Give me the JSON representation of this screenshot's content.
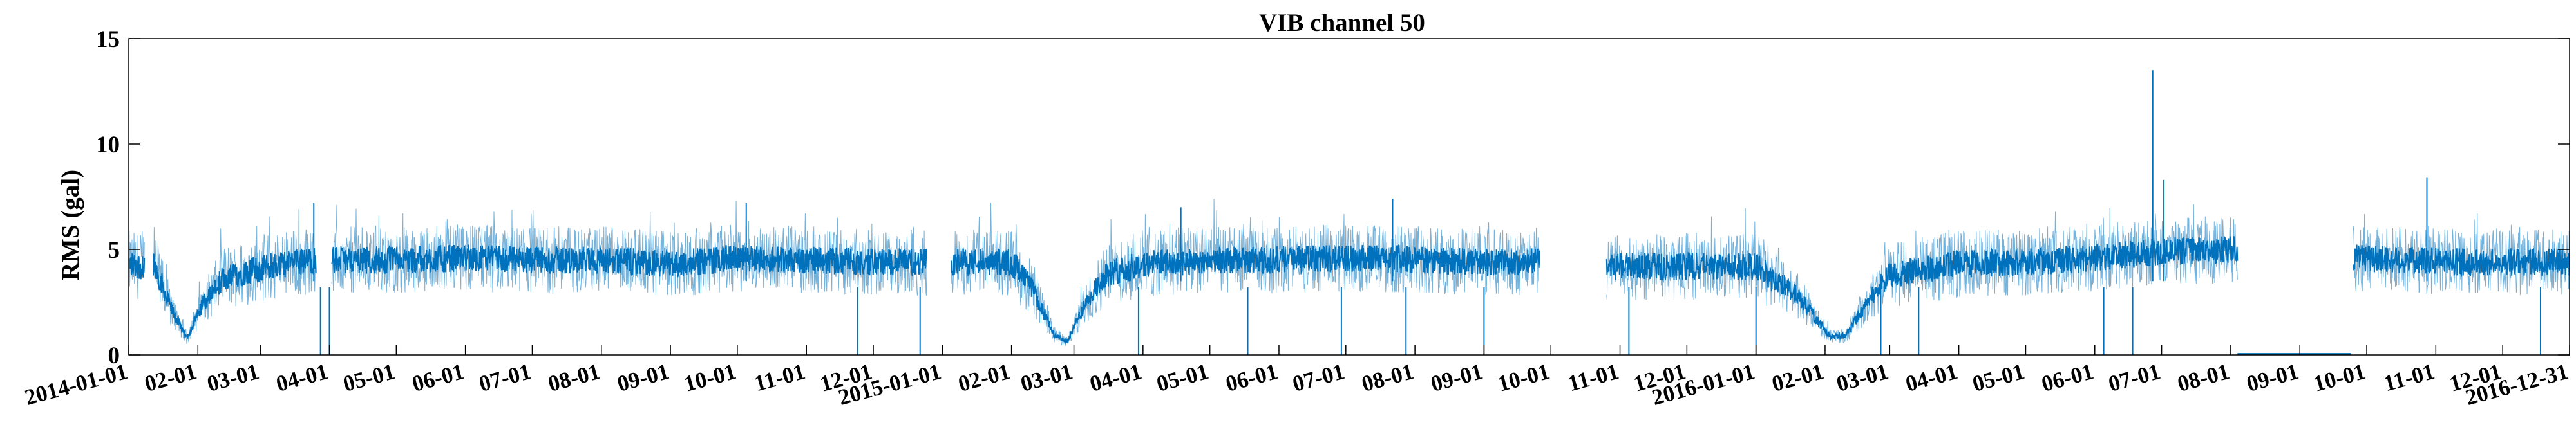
{
  "chart_data": {
    "type": "line",
    "title": "VIB channel 50",
    "xlabel": "",
    "ylabel": "RMS (gal)",
    "ylim": [
      0,
      15
    ],
    "yticks": [
      0,
      5,
      10,
      15
    ],
    "xlim": [
      "2014-01-01",
      "2016-12-31"
    ],
    "grid": false,
    "legend": "none",
    "colors": {
      "series": "#0072bd",
      "axes": "#000000"
    },
    "xtick_labels": [
      "2014-01-01",
      "02-01",
      "03-01",
      "04-01",
      "05-01",
      "06-01",
      "07-01",
      "08-01",
      "09-01",
      "10-01",
      "11-01",
      "12-01",
      "2015-01-01",
      "02-01",
      "03-01",
      "04-01",
      "05-01",
      "06-01",
      "07-01",
      "08-01",
      "09-01",
      "10-01",
      "11-01",
      "12-01",
      "2016-01-01",
      "02-01",
      "03-01",
      "04-01",
      "05-01",
      "06-01",
      "07-01",
      "08-01",
      "09-01",
      "10-01",
      "11-01",
      "12-01",
      "2016-12-31"
    ],
    "xtick_dates": [
      "2014-01-01",
      "2014-02-01",
      "2014-03-01",
      "2014-04-01",
      "2014-05-01",
      "2014-06-01",
      "2014-07-01",
      "2014-08-01",
      "2014-09-01",
      "2014-10-01",
      "2014-11-01",
      "2014-12-01",
      "2015-01-01",
      "2015-02-01",
      "2015-03-01",
      "2015-04-01",
      "2015-05-01",
      "2015-06-01",
      "2015-07-01",
      "2015-08-01",
      "2015-09-01",
      "2015-10-01",
      "2015-11-01",
      "2015-12-01",
      "2016-01-01",
      "2016-02-01",
      "2016-03-01",
      "2016-04-01",
      "2016-05-01",
      "2016-06-01",
      "2016-07-01",
      "2016-08-01",
      "2016-09-01",
      "2016-10-01",
      "2016-11-01",
      "2016-12-01",
      "2016-12-31"
    ],
    "series": [
      {
        "values_note": "",
        "segments": [
          {
            "start": "2014-01-01",
            "end": "2014-01-08",
            "points": [
              [
                "2014-01-01",
                4.3
              ],
              [
                "2014-01-08",
                4.2
              ]
            ]
          },
          {
            "start": "2014-01-12",
            "end": "2014-03-26",
            "points": [
              [
                "2014-01-12",
                4.4
              ],
              [
                "2014-01-20",
                2.2
              ],
              [
                "2014-01-27",
                0.8
              ],
              [
                "2014-02-03",
                2.4
              ],
              [
                "2014-02-12",
                3.6
              ],
              [
                "2014-02-25",
                4.0
              ],
              [
                "2014-03-10",
                4.3
              ],
              [
                "2014-03-26",
                4.5
              ]
            ]
          },
          {
            "start": "2014-04-02",
            "end": "2014-12-25",
            "points": [
              [
                "2014-04-02",
                4.5
              ],
              [
                "2014-05-01",
                4.5
              ],
              [
                "2014-06-01",
                4.6
              ],
              [
                "2014-07-01",
                4.5
              ],
              [
                "2014-08-01",
                4.5
              ],
              [
                "2014-09-01",
                4.3
              ],
              [
                "2014-10-01",
                4.6
              ],
              [
                "2014-11-01",
                4.5
              ],
              [
                "2014-12-01",
                4.4
              ],
              [
                "2014-12-25",
                4.4
              ]
            ]
          },
          {
            "start": "2015-01-05",
            "end": "2015-09-26",
            "points": [
              [
                "2015-01-05",
                4.4
              ],
              [
                "2015-02-01",
                4.4
              ],
              [
                "2015-02-10",
                3.2
              ],
              [
                "2015-02-20",
                1.0
              ],
              [
                "2015-02-26",
                0.6
              ],
              [
                "2015-03-05",
                2.2
              ],
              [
                "2015-03-15",
                3.8
              ],
              [
                "2015-04-01",
                4.3
              ],
              [
                "2015-05-01",
                4.5
              ],
              [
                "2015-06-01",
                4.5
              ],
              [
                "2015-07-01",
                4.6
              ],
              [
                "2015-08-01",
                4.5
              ],
              [
                "2015-09-01",
                4.4
              ],
              [
                "2015-09-26",
                4.4
              ]
            ]
          },
          {
            "start": "2015-10-26",
            "end": "2016-08-04",
            "points": [
              [
                "2015-10-26",
                4.2
              ],
              [
                "2015-12-01",
                4.2
              ],
              [
                "2016-01-01",
                4.2
              ],
              [
                "2016-01-20",
                2.8
              ],
              [
                "2016-02-03",
                0.9
              ],
              [
                "2016-02-10",
                0.9
              ],
              [
                "2016-02-22",
                2.8
              ],
              [
                "2016-03-01",
                3.8
              ],
              [
                "2016-04-01",
                4.3
              ],
              [
                "2016-05-01",
                4.4
              ],
              [
                "2016-06-01",
                4.6
              ],
              [
                "2016-07-01",
                4.9
              ],
              [
                "2016-08-01",
                5.0
              ],
              [
                "2016-08-04",
                5.0
              ]
            ]
          },
          {
            "start": "2016-08-04",
            "end": "2016-09-24",
            "points": [
              [
                "2016-08-05",
                0.0
              ],
              [
                "2016-09-24",
                0.0
              ]
            ]
          },
          {
            "start": "2016-09-25",
            "end": "2016-12-31",
            "points": [
              [
                "2016-09-25",
                4.6
              ],
              [
                "2016-10-15",
                4.5
              ],
              [
                "2016-11-15",
                4.4
              ],
              [
                "2016-12-31",
                4.4
              ]
            ]
          }
        ],
        "noise_amplitude": 1.6,
        "spikes": [
          [
            "2016-06-27",
            13.5
          ],
          [
            "2016-07-02",
            8.3
          ],
          [
            "2016-10-28",
            8.4
          ],
          [
            "2014-03-25",
            7.2
          ],
          [
            "2015-07-22",
            7.4
          ],
          [
            "2014-10-05",
            7.2
          ],
          [
            "2015-04-18",
            7.0
          ]
        ],
        "dips": [
          "2014-03-28",
          "2014-04-01",
          "2014-11-24",
          "2014-12-22",
          "2015-03-30",
          "2015-05-18",
          "2015-06-29",
          "2015-07-28",
          "2015-09-01",
          "2015-11-05",
          "2016-01-01",
          "2016-02-26",
          "2016-03-14",
          "2016-06-05",
          "2016-06-18",
          "2016-12-18"
        ]
      }
    ]
  }
}
